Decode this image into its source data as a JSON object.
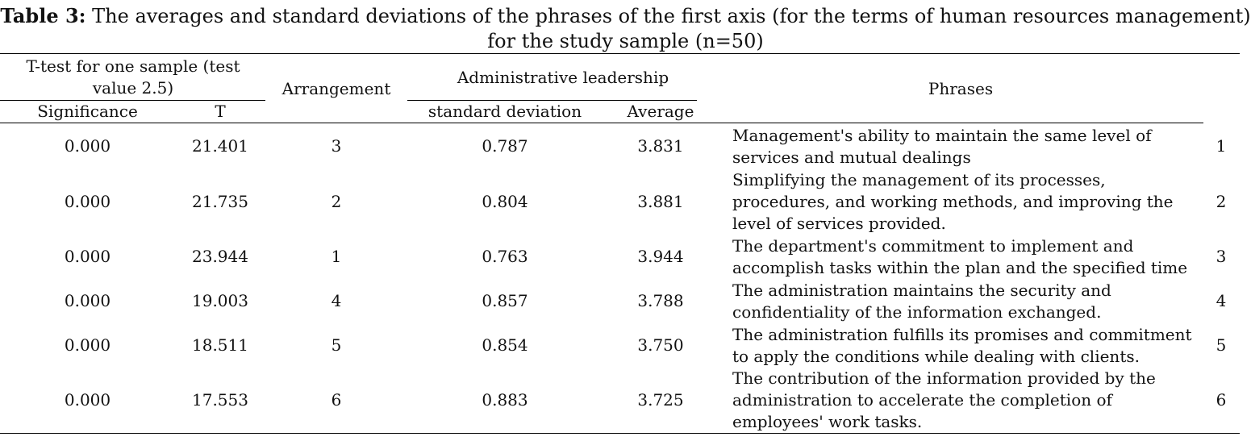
{
  "caption": {
    "label": "Table 3:",
    "text": " The averages and standard deviations of the phrases of the first axis (for the terms of human resources management) for the study sample (n=50)"
  },
  "header": {
    "ttest_group": "T-test for one sample (test value 2.5)",
    "significance": "Significance",
    "t": "T",
    "arrangement": "Arrangement",
    "admin_group": "Administrative leadership",
    "std": "standard deviation",
    "average": "Average",
    "phrases": "Phrases"
  },
  "rows": [
    {
      "significance": "0.000",
      "t": "21.401",
      "arrangement": "3",
      "std": "0.787",
      "average": "3.831",
      "phrase": "Management's ability to maintain the same level of services and mutual dealings",
      "num": "1"
    },
    {
      "significance": "0.000",
      "t": "21.735",
      "arrangement": "2",
      "std": "0.804",
      "average": "3.881",
      "phrase": "Simplifying the management of its processes, procedures, and working methods, and improving the level of services provided.",
      "num": "2"
    },
    {
      "significance": "0.000",
      "t": "23.944",
      "arrangement": "1",
      "std": "0.763",
      "average": "3.944",
      "phrase": "The department's commitment to implement and accomplish tasks within the plan and the specified time",
      "num": "3"
    },
    {
      "significance": "0.000",
      "t": "19.003",
      "arrangement": "4",
      "std": "0.857",
      "average": "3.788",
      "phrase": "The administration maintains the security and confidentiality of the information exchanged.",
      "num": "4"
    },
    {
      "significance": "0.000",
      "t": "18.511",
      "arrangement": "5",
      "std": "0.854",
      "average": "3.750",
      "phrase": "The administration fulfills its promises and commitment to apply the conditions while dealing with clients.",
      "num": "5"
    },
    {
      "significance": "0.000",
      "t": "17.553",
      "arrangement": "6",
      "std": "0.883",
      "average": "3.725",
      "phrase": "The contribution of the information provided by the administration to accelerate the completion of employees' work tasks.",
      "num": "6"
    }
  ]
}
